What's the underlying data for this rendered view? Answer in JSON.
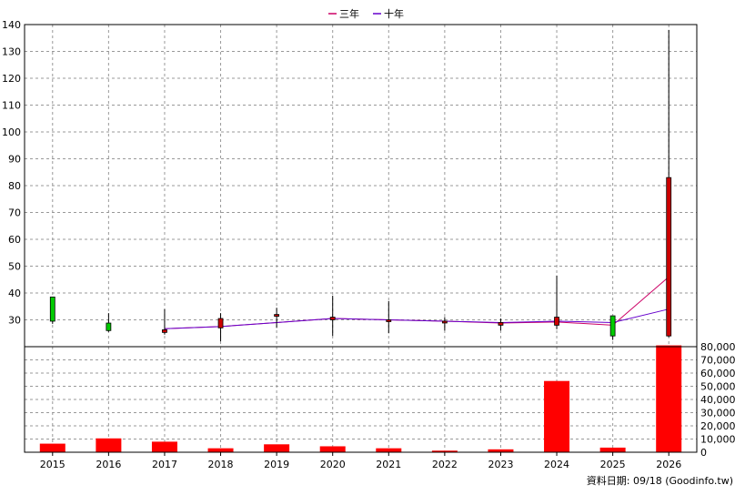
{
  "legend": {
    "items": [
      {
        "label": "三年",
        "color": "#cc0066"
      },
      {
        "label": "十年",
        "color": "#6600cc"
      }
    ]
  },
  "footer_note": "資料日期: 09/18  (Goodinfo.tw)",
  "colors": {
    "up_candle": "#cc0000",
    "down_candle": "#00cc00",
    "volume_bar": "#ff0000",
    "grid": "#999999",
    "axis": "#000000"
  },
  "chart_data": [
    {
      "type": "candlestick",
      "years": [
        "2015",
        "2016",
        "2017",
        "2018",
        "2019",
        "2020",
        "2021",
        "2022",
        "2023",
        "2024",
        "2025",
        "2026"
      ],
      "ohlc": [
        {
          "year": "2015",
          "open": 38.5,
          "high": 38.5,
          "low": 28.5,
          "close": 29.5
        },
        {
          "year": "2016",
          "open": 28.8,
          "high": 32.5,
          "low": 25.5,
          "close": 26.0
        },
        {
          "year": "2017",
          "open": 25.3,
          "high": 34.0,
          "low": 24.5,
          "close": 26.3
        },
        {
          "year": "2018",
          "open": 27.0,
          "high": 32.5,
          "low": 22.0,
          "close": 30.5
        },
        {
          "year": "2019",
          "open": 31.5,
          "high": 34.5,
          "low": 27.0,
          "close": 32.0
        },
        {
          "year": "2020",
          "open": 30.0,
          "high": 39.0,
          "low": 24.0,
          "close": 31.0
        },
        {
          "year": "2021",
          "open": 30.0,
          "high": 37.0,
          "low": 25.0,
          "close": 30.0
        },
        {
          "year": "2022",
          "open": 29.5,
          "high": 31.0,
          "low": 26.0,
          "close": 29.5
        },
        {
          "year": "2023",
          "open": 28.0,
          "high": 30.5,
          "low": 26.0,
          "close": 29.0
        },
        {
          "year": "2024",
          "open": 28.0,
          "high": 46.5,
          "low": 26.5,
          "close": 31.0
        },
        {
          "year": "2025",
          "open": 31.5,
          "high": 31.5,
          "low": 22.5,
          "close": 24.0
        },
        {
          "year": "2026",
          "open": 24.0,
          "high": 138.0,
          "low": 23.5,
          "close": 83.0
        }
      ],
      "averages": [
        {
          "name": "三年",
          "color": "#cc0066",
          "x": [
            "2017",
            "2018",
            "2019",
            "2020",
            "2021",
            "2022",
            "2023",
            "2024",
            "2025",
            "2026"
          ],
          "values": [
            26.7,
            27.5,
            29.0,
            30.5,
            30.0,
            29.5,
            28.8,
            29.2,
            28.0,
            46.0
          ]
        },
        {
          "name": "十年",
          "color": "#6600cc",
          "x": [
            "2017",
            "2018",
            "2019",
            "2020",
            "2021",
            "2022",
            "2023",
            "2024",
            "2025",
            "2026"
          ],
          "values": [
            26.7,
            27.5,
            29.0,
            30.5,
            30.0,
            29.5,
            29.0,
            29.5,
            29.0,
            34.0
          ]
        }
      ],
      "y_ticks": [
        30,
        40,
        50,
        60,
        70,
        80,
        90,
        100,
        110,
        120,
        130,
        140
      ],
      "ylim": [
        20,
        140
      ],
      "grid": true,
      "legend_position": "top-center"
    },
    {
      "type": "bar",
      "categories": [
        "2015",
        "2016",
        "2017",
        "2018",
        "2019",
        "2020",
        "2021",
        "2022",
        "2023",
        "2024",
        "2025",
        "2026"
      ],
      "values": [
        6500,
        10500,
        8000,
        3000,
        6000,
        4500,
        3000,
        1200,
        2200,
        54000,
        3500,
        81000
      ],
      "y_ticks": [
        "0",
        "10,000",
        "20,000",
        "30,000",
        "40,000",
        "50,000",
        "60,000",
        "70,000",
        "80,000"
      ],
      "ylim": [
        0,
        80000
      ],
      "grid": true
    }
  ]
}
